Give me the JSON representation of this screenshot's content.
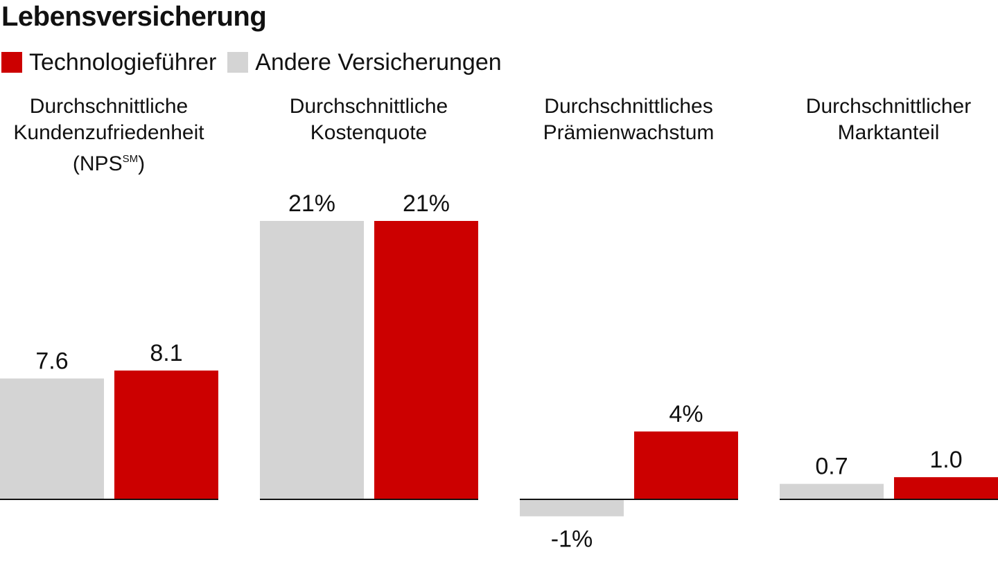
{
  "title": "Lebensversicherung",
  "colors": {
    "leader": "#cc0000",
    "others": "#d4d4d4",
    "axis": "#111111"
  },
  "legend": [
    {
      "label": "Technologieführer",
      "color": "#cc0000"
    },
    {
      "label": "Andere Versicherungen",
      "color": "#d4d4d4"
    }
  ],
  "panel_titles": [
    {
      "line1": "Durchschnittliche",
      "line2": "Kundenzufriedenheit",
      "line3": "(NPS",
      "sup": "SM",
      "line3_end": ")"
    },
    {
      "line1": "Durchschnittliche",
      "line2": "Kostenquote"
    },
    {
      "line1": "Durchschnittliches",
      "line2": "Prämienwachstum"
    },
    {
      "line1": "Durchschnittlicher",
      "line2": "Marktanteil"
    }
  ],
  "chart_data": [
    {
      "type": "bar",
      "title": "Durchschnittliche Kundenzufriedenheit (NPS℠)",
      "categories": [
        "Andere Versicherungen",
        "Technologieführer"
      ],
      "values": [
        7.6,
        8.1
      ],
      "labels": [
        "7.6",
        "8.1"
      ],
      "ylim": [
        0,
        8.5
      ]
    },
    {
      "type": "bar",
      "title": "Durchschnittliche Kostenquote",
      "categories": [
        "Andere Versicherungen",
        "Technologieführer"
      ],
      "values": [
        21,
        21
      ],
      "labels": [
        "21%",
        "21%"
      ],
      "ylim": [
        0,
        21
      ]
    },
    {
      "type": "bar",
      "title": "Durchschnittliches Prämienwachstum",
      "categories": [
        "Andere Versicherungen",
        "Technologieführer"
      ],
      "values": [
        -1,
        4
      ],
      "labels": [
        "-1%",
        "4%"
      ],
      "ylim": [
        -1,
        4
      ]
    },
    {
      "type": "bar",
      "title": "Durchschnittlicher Marktanteil",
      "categories": [
        "Andere Versicherungen",
        "Technologieführer"
      ],
      "values": [
        0.7,
        1.0
      ],
      "labels": [
        "0.7",
        "1.0"
      ],
      "ylim": [
        0,
        1.0
      ]
    }
  ]
}
